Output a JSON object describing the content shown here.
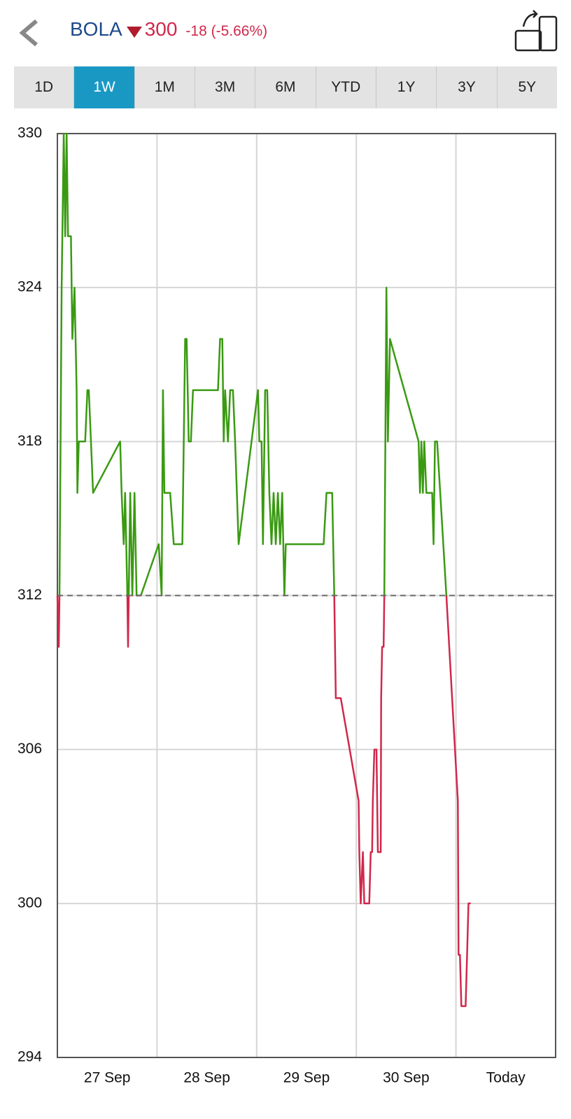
{
  "header": {
    "symbol": "BOLA",
    "price": "300",
    "change": "-18 (-5.66%)"
  },
  "tabs": {
    "items": [
      "1D",
      "1W",
      "1M",
      "3M",
      "6M",
      "YTD",
      "1Y",
      "3Y",
      "5Y"
    ],
    "active": "1W"
  },
  "chart_data": {
    "type": "line",
    "categories": [
      "27 Sep",
      "28 Sep",
      "29 Sep",
      "30 Sep",
      "Today"
    ],
    "xlim": [
      0,
      5
    ],
    "xticks": [
      1,
      2,
      3,
      4
    ],
    "ylim": [
      294,
      330
    ],
    "yticks": [
      294,
      300,
      306,
      312,
      318,
      324,
      330
    ],
    "baseline": 312,
    "grid": true,
    "color_up": "#3a9a12",
    "color_down": "#d0284c",
    "x": [
      0,
      0.014,
      0.021,
      0.043,
      0.05,
      0.064,
      0.079,
      0.093,
      0.107,
      0.136,
      0.15,
      0.172,
      0.193,
      0.201,
      0.215,
      0.279,
      0.301,
      0.315,
      0.337,
      0.358,
      0.63,
      0.645,
      0.666,
      0.68,
      0.702,
      0.709,
      0.716,
      0.731,
      0.752,
      0.774,
      0.795,
      0.838,
      1.017,
      1.046,
      1.06,
      1.074,
      1.132,
      1.168,
      1.254,
      1.282,
      1.297,
      1.318,
      1.34,
      1.361,
      1.612,
      1.633,
      1.655,
      1.669,
      1.683,
      1.712,
      1.734,
      1.762,
      1.784,
      1.819,
      2.013,
      2.027,
      2.049,
      2.063,
      2.085,
      2.106,
      2.127,
      2.149,
      2.17,
      2.192,
      2.213,
      2.235,
      2.256,
      2.278,
      2.292,
      2.672,
      2.701,
      2.758,
      2.779,
      2.794,
      2.844,
      3.023,
      3.03,
      3.044,
      3.066,
      3.08,
      3.13,
      3.145,
      3.159,
      3.166,
      3.181,
      3.202,
      3.216,
      3.245,
      3.249,
      3.259,
      3.274,
      3.281,
      3.302,
      3.317,
      3.338,
      3.625,
      3.639,
      3.653,
      3.668,
      3.682,
      3.703,
      3.761,
      3.775,
      3.789,
      3.811,
      3.904,
      4.019,
      4.026,
      4.04,
      4.054,
      4.097,
      4.112,
      4.126,
      4.148
    ],
    "values": [
      312,
      310,
      312,
      324,
      326,
      330,
      326,
      330,
      326,
      326,
      322,
      324,
      320,
      316,
      318,
      318,
      320,
      320,
      318,
      316,
      318,
      316,
      314,
      316,
      312,
      310,
      312,
      316,
      312,
      316,
      312,
      312,
      314,
      312,
      320,
      316,
      316,
      314,
      314,
      322,
      322,
      318,
      318,
      320,
      320,
      322,
      322,
      318,
      320,
      318,
      320,
      320,
      318,
      314,
      320,
      318,
      318,
      314,
      320,
      320,
      316,
      314,
      316,
      314,
      316,
      314,
      316,
      312,
      314,
      314,
      316,
      316,
      312,
      308,
      308,
      304,
      302,
      300,
      302,
      300,
      300,
      302,
      302,
      304,
      306,
      306,
      302,
      302,
      308,
      310,
      310,
      312,
      324,
      318,
      322,
      318,
      316,
      318,
      316,
      318,
      316,
      316,
      314,
      318,
      318,
      312,
      304,
      298,
      298,
      296,
      296,
      298,
      300,
      300
    ]
  }
}
